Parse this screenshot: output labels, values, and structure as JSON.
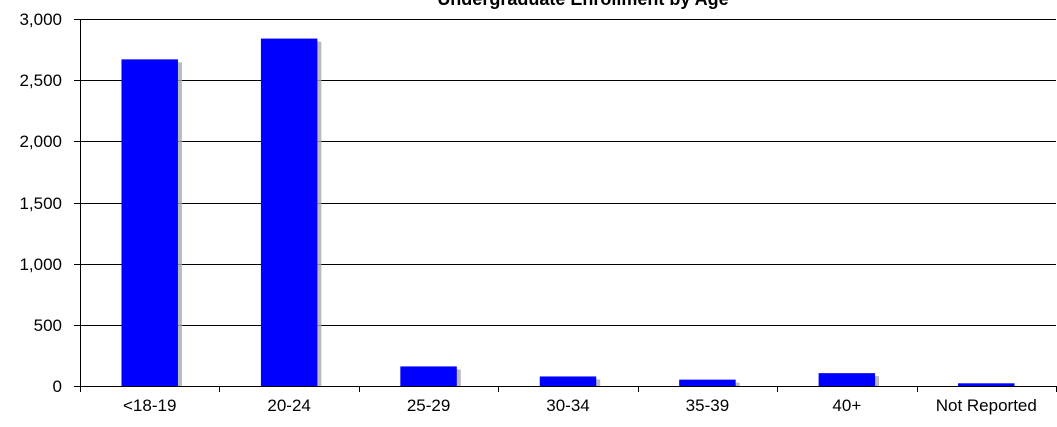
{
  "chart_data": {
    "type": "bar",
    "title": "Undergraduate Enrollment by Age",
    "xlabel": "",
    "ylabel": "",
    "categories": [
      "<18-19",
      "20-24",
      "25-29",
      "30-34",
      "35-39",
      "40+",
      "Not Reported"
    ],
    "values": [
      2670,
      2840,
      160,
      78,
      52,
      105,
      22
    ],
    "ylim": [
      0,
      3000
    ],
    "yticks": [
      0,
      500,
      1000,
      1500,
      2000,
      2500,
      3000
    ],
    "ytick_labels": [
      "0",
      "500",
      "1,000",
      "1,500",
      "2,000",
      "2,500",
      "3,000"
    ],
    "grid": true,
    "legend": "none",
    "colors": {
      "bar": "#0000ff",
      "bar_shadow": "#a9a9a9",
      "grid": "#000000"
    }
  }
}
